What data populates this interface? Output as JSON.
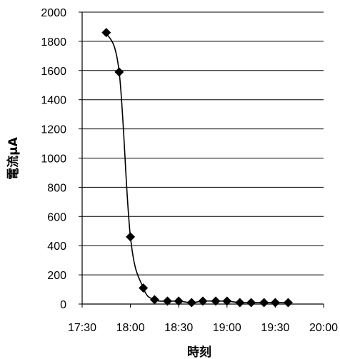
{
  "chart_data": {
    "type": "line",
    "title": "",
    "xlabel": "時刻",
    "ylabel": "電流μA",
    "x_ticks": [
      "17:30",
      "18:00",
      "18:30",
      "19:00",
      "19:30",
      "20:00"
    ],
    "y_ticks": [
      "0",
      "200",
      "400",
      "600",
      "800",
      "1000",
      "1200",
      "1400",
      "1600",
      "1800",
      "2000"
    ],
    "xlim": [
      "17:30",
      "20:00"
    ],
    "ylim": [
      0,
      2000
    ],
    "grid": "horizontal",
    "series": [
      {
        "marker": "diamond",
        "color": "#000000",
        "smooth": true,
        "x": [
          "17:45",
          "17:53",
          "18:00",
          "18:08",
          "18:15",
          "18:23",
          "18:30",
          "18:38",
          "18:45",
          "18:53",
          "19:00",
          "19:08",
          "19:15",
          "19:23",
          "19:30",
          "19:38"
        ],
        "values": [
          1860,
          1590,
          460,
          110,
          30,
          20,
          20,
          10,
          20,
          20,
          20,
          10,
          10,
          10,
          10,
          10
        ]
      }
    ]
  }
}
